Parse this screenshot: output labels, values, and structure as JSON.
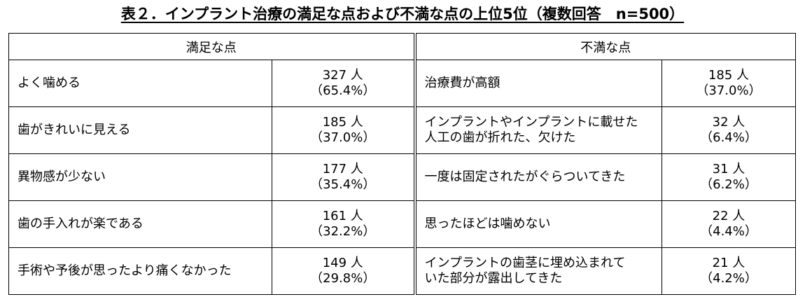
{
  "title": "表２．インプラント治療の満足な点および不満な点の上位5位（複数回答　n=500）",
  "table": {
    "headers": [
      "満足な点",
      "不満な点"
    ],
    "rows": [
      {
        "left": {
          "item": [
            "よく噛める"
          ],
          "count": "327 人",
          "pct": "（65.4%）"
        },
        "right": {
          "item": [
            "治療費が高額"
          ],
          "count": "185 人",
          "pct": "（37.0%）"
        }
      },
      {
        "left": {
          "item": [
            "歯がきれいに見える"
          ],
          "count": "185 人",
          "pct": "（37.0%）"
        },
        "right": {
          "item": [
            "インプラントやインプラントに載せた",
            "人工の歯が折れた、欠けた"
          ],
          "count": "32 人",
          "pct": "（6.4%）"
        }
      },
      {
        "left": {
          "item": [
            "異物感が少ない"
          ],
          "count": "177 人",
          "pct": "（35.4%）"
        },
        "right": {
          "item": [
            "一度は固定されたがぐらついてきた"
          ],
          "count": "31 人",
          "pct": "（6.2%）"
        }
      },
      {
        "left": {
          "item": [
            "歯の手入れが楽である"
          ],
          "count": "161 人",
          "pct": "（32.2%）"
        },
        "right": {
          "item": [
            "思ったほどは噛めない"
          ],
          "count": "22 人",
          "pct": "（4.4%）"
        }
      },
      {
        "left": {
          "item": [
            "手術や予後が思ったより痛くなかった"
          ],
          "count": "149 人",
          "pct": "（29.8%）"
        },
        "right": {
          "item": [
            "インプラントの歯茎に埋め込まれて",
            "いた部分が露出してきた"
          ],
          "count": "21 人",
          "pct": "（4.2%）"
        }
      }
    ]
  }
}
